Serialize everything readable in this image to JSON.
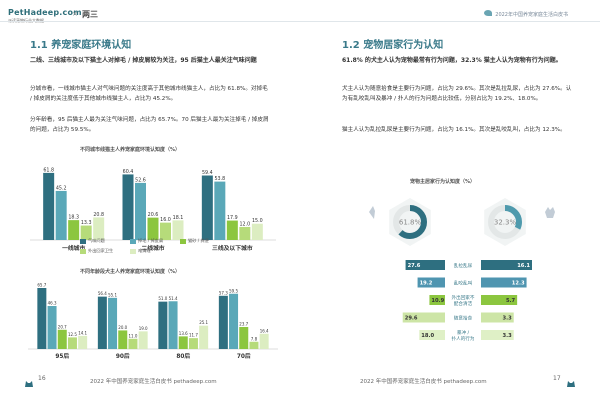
{
  "header": {
    "brand_logo": "PetHadeep.com",
    "brand_sub": "派读宠物行业大数据",
    "separator": "×",
    "partner": "两三",
    "report_title": "2022年中国养宠家庭生活白皮书"
  },
  "left": {
    "section_title": "1.1 养宠家庭环境认知",
    "p1": "二线、三线城市及以下猫主人对掉毛 / 掉皮屑较为关注，95 后猫主人最关注气味问题",
    "p2": "分城市看，一线城市猫主人对气味问题的关注度高于其他城市线猫主人，占比为 61.8%。对掉毛 / 掉皮屑的关注度低于其他城市线猫主人，占比为 45.2%。",
    "p3": "分年龄看，95 后猫主人最为关注气味问题，占比为 65.7%。70 后猫主人最为关注掉毛 / 掉皮屑的问题，占比为 59.5%。",
    "footer": "2022 年中国养宠家庭生活白皮书 pethadeep.com",
    "page_num": "16"
  },
  "right": {
    "section_title": "1.2 宠物居家行为认知",
    "p1": "61.8% 的犬主人认为宠物最常有行为问题，32.3% 猫主人认为宠物有行为问题。",
    "p2": "犬主人认为随意拾食是主要行为问题，占比为 29.6%。其次是乱拉乱尿，占比为 27.6%。认为有乱咬乱叫及暴冲 / 扑人的行为问题占比较低，分别占比为 19.2%、18.0%。",
    "p3": "猫主人认为乱拉乱尿是主要行为问题，占比为 16.1%。其次是乱咬乱叫，占比为 12.3%。",
    "footer": "2022 年中国养宠家庭生活白皮书 pethadeep.com",
    "page_num": "17"
  },
  "colors": {
    "c1": "#2e6f80",
    "c2": "#5aa8b8",
    "c3": "#8cc63f",
    "c4": "#b6db7a",
    "c5": "#dcedc1",
    "dog": "#2e6f80",
    "cat": "#4f9aad"
  },
  "chart_data": [
    {
      "type": "bar",
      "title": "不同城市线猫主人养宠家庭环境认知度（%）",
      "categories": [
        "一线城市",
        "二线城市",
        "三线及以下城市"
      ],
      "series": [
        {
          "name": "气味问题",
          "values": [
            61.8,
            60.4,
            59.4
          ]
        },
        {
          "name": "掉毛 / 掉皮屑",
          "values": [
            45.2,
            52.6,
            53.8
          ]
        },
        {
          "name": "猫砂 / 粪便",
          "values": [
            18.3,
            20.6,
            17.9
          ]
        },
        {
          "name": "",
          "values": [
            13.3,
            16.0,
            12.0
          ]
        },
        {
          "name": "",
          "values": [
            20.8,
            18.1,
            15.0
          ]
        }
      ],
      "ylim": [
        0,
        70
      ]
    },
    {
      "type": "bar",
      "title": "不同年龄段犬主人养宠家庭环境认知度（%）",
      "categories": [
        "95后",
        "90后",
        "80后",
        "70后"
      ],
      "series": [
        {
          "name": "气味问题",
          "values": [
            65.7,
            56.4,
            51.0,
            57.3
          ]
        },
        {
          "name": "掉毛 / 掉皮屑",
          "values": [
            46.3,
            55.1,
            51.4,
            59.5
          ]
        },
        {
          "name": "猫砂 / 粪便",
          "values": [
            20.7,
            20.0,
            13.6,
            23.7
          ]
        },
        {
          "name": "外出回家卫生",
          "values": [
            12.5,
            11.0,
            11.7,
            7.8
          ]
        },
        {
          "name": "难清理",
          "values": [
            14.1,
            19.0,
            25.1,
            16.4
          ]
        }
      ],
      "ylim": [
        0,
        70
      ]
    },
    {
      "type": "bar",
      "title": "宠物主居家行为认知度（%）",
      "categories": [
        "乱拉乱尿",
        "乱咬乱叫",
        "外出回家不配合清洁",
        "随意拾食",
        "暴冲 / 扑人的行为"
      ],
      "series": [
        {
          "name": "犬",
          "values": [
            27.6,
            19.2,
            10.9,
            29.6,
            18.0
          ]
        },
        {
          "name": "猫",
          "values": [
            16.1,
            12.3,
            5.7,
            3.3,
            3.3
          ]
        }
      ],
      "donut_dog": 61.8,
      "donut_cat": 32.3
    }
  ]
}
